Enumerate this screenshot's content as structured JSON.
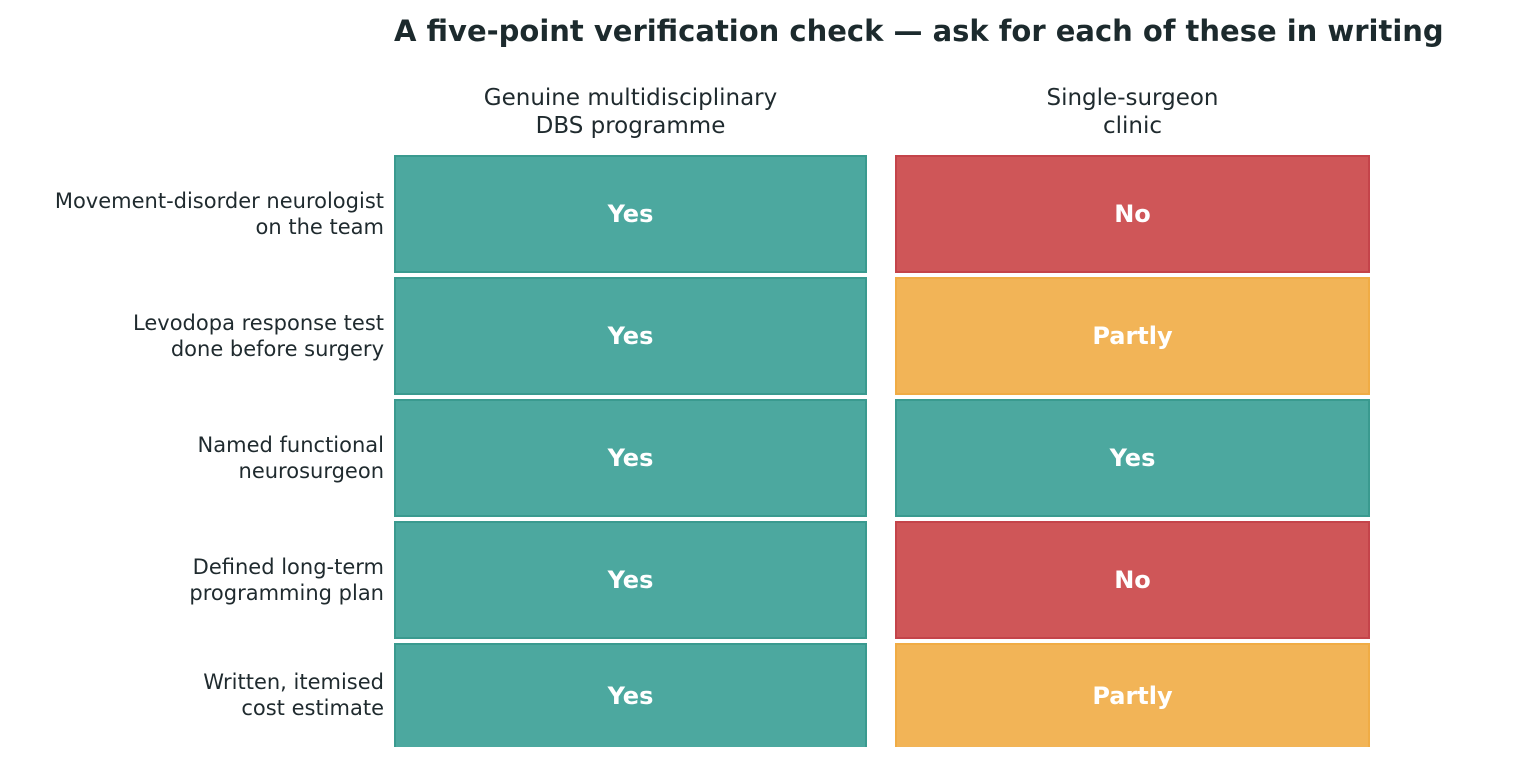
{
  "title": "A five-point verification check — ask for each of these in writing",
  "colors": {
    "Yes": "#4ca89f",
    "No": "#cf5658",
    "Partly": "#f2b457",
    "border_Yes": "#3a9a8f",
    "border_No": "#c4444a",
    "border_Partly": "#f0ac45"
  },
  "chart_data": {
    "type": "table",
    "title": "A five-point verification check — ask for each of these in writing",
    "columns": [
      "Genuine multidisciplinary\nDBS programme",
      "Single-surgeon\nclinic"
    ],
    "rows": [
      "Movement-disorder neurologist\non the team",
      "Levodopa response test\ndone before surgery",
      "Named functional\nneurosurgeon",
      "Defined long-term\nprogramming plan",
      "Written, itemised\ncost estimate"
    ],
    "cells": [
      [
        "Yes",
        "No"
      ],
      [
        "Yes",
        "Partly"
      ],
      [
        "Yes",
        "Yes"
      ],
      [
        "Yes",
        "No"
      ],
      [
        "Yes",
        "Partly"
      ]
    ]
  }
}
